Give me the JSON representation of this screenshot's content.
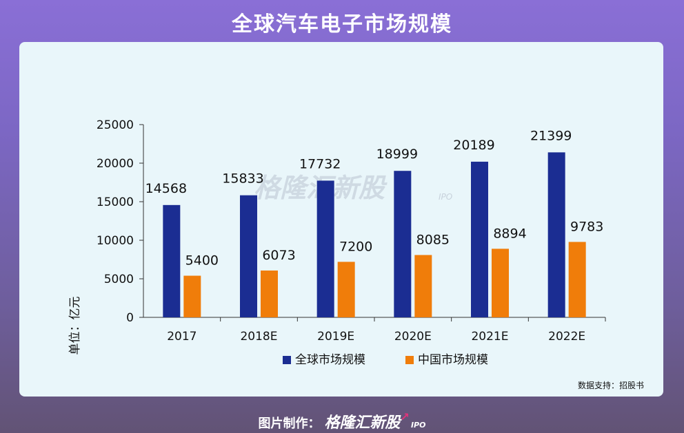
{
  "page": {
    "title": "全球汽车电子市场规模",
    "source": "数据支持：招股书",
    "footer_label": "图片制作：",
    "footer_brand": "格隆汇新股",
    "footer_ipo": "IPO",
    "watermark": "格隆汇新股",
    "watermark_ipo": "IPO"
  },
  "chart_data": {
    "type": "bar",
    "title": "",
    "xlabel": "",
    "ylabel": "单位：亿元",
    "ylim": [
      0,
      25000
    ],
    "yticks": [
      0,
      5000,
      10000,
      15000,
      20000,
      25000
    ],
    "categories": [
      "2017",
      "2018E",
      "2019E",
      "2020E",
      "2021E",
      "2022E"
    ],
    "series": [
      {
        "name": "全球市场规模",
        "color": "#1b2d92",
        "values": [
          14568,
          15833,
          17732,
          18999,
          20189,
          21399
        ]
      },
      {
        "name": "中国市场规模",
        "color": "#f07d0a",
        "values": [
          5400,
          6073,
          7200,
          8085,
          8894,
          9783
        ]
      }
    ],
    "legend_position": "bottom",
    "grid": false
  }
}
